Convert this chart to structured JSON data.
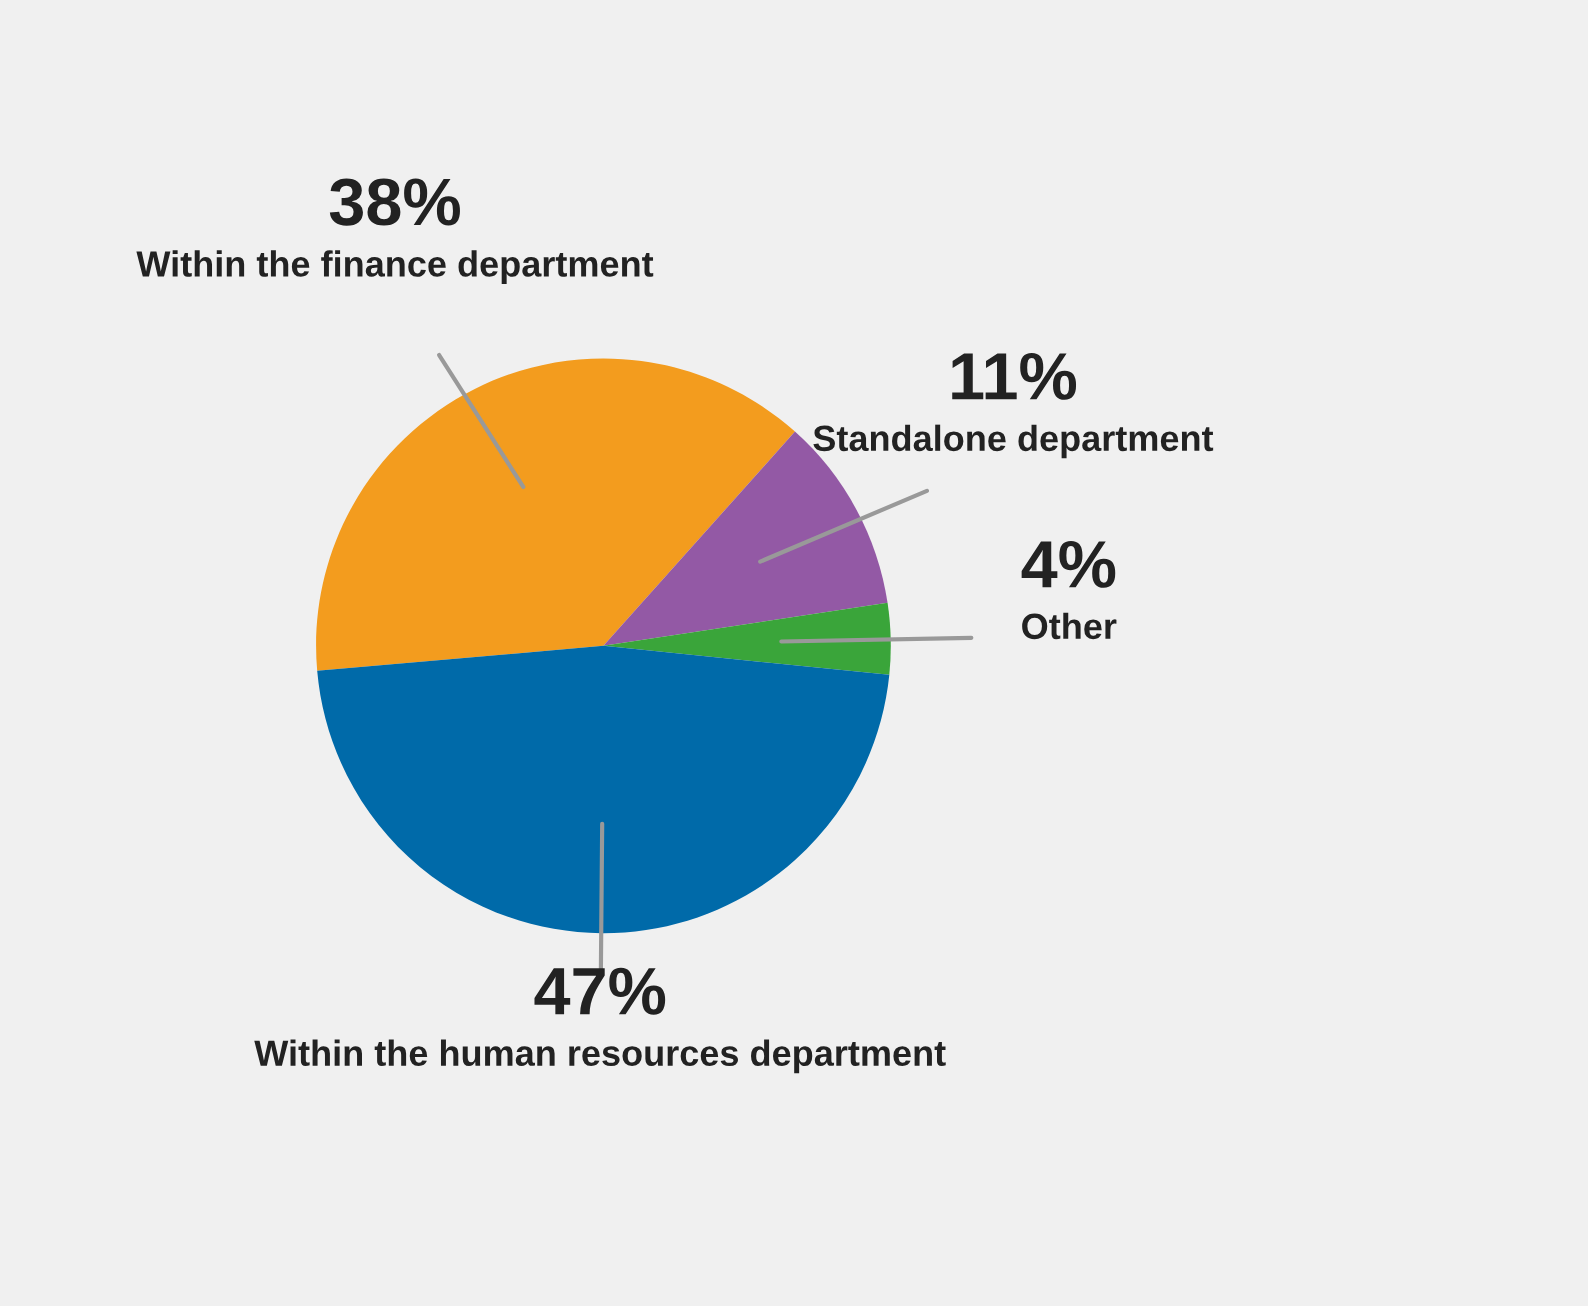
{
  "chart_data": {
    "type": "pie",
    "categories": [
      "Within the finance department",
      "Standalone department",
      "Other",
      "Within the human resources department"
    ],
    "values": [
      38,
      11,
      4,
      47
    ],
    "colors": [
      "#f39c1e",
      "#9359a5",
      "#3aa53a",
      "#006aa9"
    ],
    "value_labels": [
      "38%",
      "11%",
      "4%",
      "47%"
    ],
    "legend": false
  }
}
